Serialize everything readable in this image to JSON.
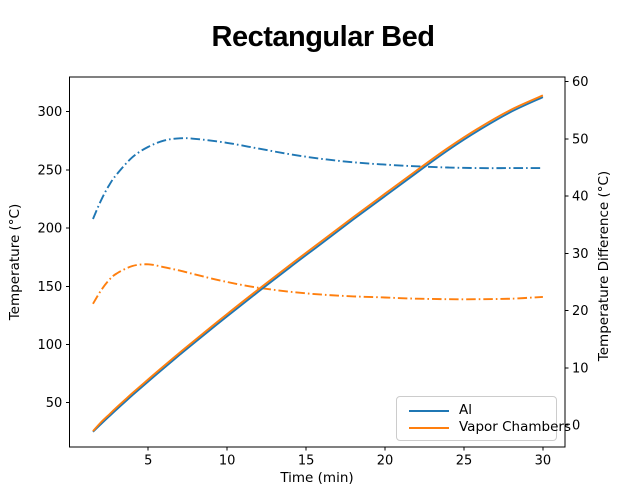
{
  "chart_data": {
    "type": "line",
    "title": "Rectangular Bed",
    "xlabel": "Time (min)",
    "ylabel_left": "Temperature (°C)",
    "ylabel_right": "Temperature Difference (°C)",
    "xlim": [
      0,
      31.4
    ],
    "ylim_left": [
      11.9,
      329.8
    ],
    "ylim_right": [
      -3.8,
      60.8
    ],
    "xticks": [
      5,
      10,
      15,
      20,
      25,
      30
    ],
    "yticks_left": [
      50,
      100,
      150,
      200,
      250,
      300
    ],
    "yticks_right": [
      0,
      10,
      20,
      30,
      40,
      50,
      60
    ],
    "grid": false,
    "legend_position": "lower right",
    "x": [
      1.5,
      2,
      2.5,
      3,
      4,
      5,
      6,
      7,
      8,
      10,
      12,
      14,
      16,
      18,
      20,
      22,
      24,
      26,
      28,
      30
    ],
    "series": [
      {
        "name": "Al temperature difference",
        "axis": "right",
        "style": "dashdot",
        "color": "#1f77b4",
        "values": [
          36.0,
          39.2,
          41.8,
          43.8,
          46.8,
          48.6,
          49.7,
          50.1,
          50.0,
          49.3,
          48.3,
          47.3,
          46.5,
          45.9,
          45.5,
          45.2,
          45.0,
          44.9,
          44.9,
          44.9
        ]
      },
      {
        "name": "Vapor Chambers temperature difference",
        "axis": "right",
        "style": "dashdot",
        "color": "#ff7f0e",
        "values": [
          21.2,
          23.5,
          25.3,
          26.5,
          27.8,
          28.1,
          27.6,
          27.0,
          26.3,
          25.0,
          24.0,
          23.3,
          22.8,
          22.5,
          22.3,
          22.1,
          22.0,
          22.0,
          22.1,
          22.4
        ]
      },
      {
        "name": "Al",
        "axis": "left",
        "style": "solid",
        "color": "#1f77b4",
        "values": [
          25,
          31.5,
          37.9,
          44.2,
          56.4,
          68.2,
          79.8,
          91.2,
          102.4,
          124.2,
          145.6,
          166.5,
          187,
          207.5,
          227.5,
          247.5,
          267,
          284.5,
          300,
          312.5
        ]
      },
      {
        "name": "Vapor Chambers",
        "axis": "left",
        "style": "solid",
        "color": "#ff7f0e",
        "values": [
          25.5,
          33,
          39.5,
          46,
          58.2,
          70,
          81.6,
          93,
          104.2,
          126.2,
          147.6,
          168.5,
          189,
          209.5,
          229.5,
          249.5,
          269,
          286.5,
          301.8,
          314
        ]
      }
    ],
    "legend": {
      "items": [
        {
          "label": "Al",
          "color": "#1f77b4"
        },
        {
          "label": "Vapor Chambers",
          "color": "#ff7f0e"
        }
      ]
    }
  }
}
